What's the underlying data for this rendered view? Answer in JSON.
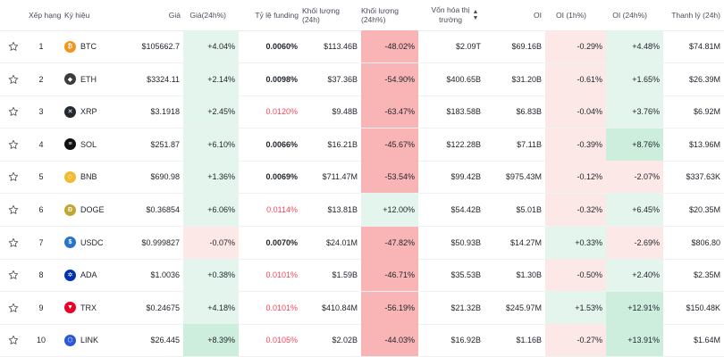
{
  "headers": {
    "rank": "Xếp hạng",
    "symbol": "Ký hiệu",
    "price": "Giá",
    "change24h": "Giá(24h%)",
    "funding": "Tỷ lệ funding",
    "volume": "Khối lượng (24h)",
    "volume_pct": "Khối lượng (24h%)",
    "mcap_line1": "Vốn hóa thị",
    "mcap_line2": "trường",
    "oi": "OI",
    "oi1h": "OI (1h%)",
    "oi24h": "OI (24h%)",
    "liq": "Thanh lý (24h)"
  },
  "colors": {
    "btc": "#f7931a",
    "eth": "#3c3c3d",
    "xrp": "#23292f",
    "sol": "#111111",
    "bnb": "#f3ba2f",
    "doge": "#c2a633",
    "usdc": "#2775ca",
    "ada": "#0033ad",
    "trx": "#eb0029",
    "link": "#2a5ada"
  },
  "rows": [
    {
      "rank": "1",
      "symbol": "BTC",
      "icon": "btc",
      "price": "$105662.7",
      "change": "+4.04%",
      "change_cls": "pos",
      "funding": "0.0060%",
      "funding_red": false,
      "volume": "$113.46B",
      "vol_pct": "-48.02%",
      "vol_cls": "neg-strong",
      "mcap": "$2.09T",
      "oi": "$69.16B",
      "oi1h": "-0.29%",
      "oi1h_cls": "neg",
      "oi24h": "+4.48%",
      "oi24h_cls": "pos",
      "liq": "$74.81M"
    },
    {
      "rank": "2",
      "symbol": "ETH",
      "icon": "eth",
      "price": "$3324.11",
      "change": "+2.14%",
      "change_cls": "pos",
      "funding": "0.0098%",
      "funding_red": false,
      "volume": "$37.36B",
      "vol_pct": "-54.90%",
      "vol_cls": "neg-strong",
      "mcap": "$400.65B",
      "oi": "$31.20B",
      "oi1h": "-0.61%",
      "oi1h_cls": "neg",
      "oi24h": "+1.65%",
      "oi24h_cls": "pos",
      "liq": "$26.39M"
    },
    {
      "rank": "3",
      "symbol": "XRP",
      "icon": "xrp",
      "price": "$3.1918",
      "change": "+2.45%",
      "change_cls": "pos",
      "funding": "0.0120%",
      "funding_red": true,
      "volume": "$9.48B",
      "vol_pct": "-63.47%",
      "vol_cls": "neg-strong",
      "mcap": "$183.58B",
      "oi": "$6.83B",
      "oi1h": "-0.04%",
      "oi1h_cls": "neg",
      "oi24h": "+3.76%",
      "oi24h_cls": "pos",
      "liq": "$6.92M"
    },
    {
      "rank": "4",
      "symbol": "SOL",
      "icon": "sol",
      "price": "$251.87",
      "change": "+6.10%",
      "change_cls": "pos",
      "funding": "0.0066%",
      "funding_red": false,
      "volume": "$16.21B",
      "vol_pct": "-45.67%",
      "vol_cls": "neg-strong",
      "mcap": "$122.28B",
      "oi": "$7.11B",
      "oi1h": "-0.39%",
      "oi1h_cls": "neg",
      "oi24h": "+8.76%",
      "oi24h_cls": "pos-strong",
      "liq": "$13.96M"
    },
    {
      "rank": "5",
      "symbol": "BNB",
      "icon": "bnb",
      "price": "$690.98",
      "change": "+1.36%",
      "change_cls": "pos",
      "funding": "0.0069%",
      "funding_red": false,
      "volume": "$711.47M",
      "vol_pct": "-53.54%",
      "vol_cls": "neg-strong",
      "mcap": "$99.42B",
      "oi": "$975.43M",
      "oi1h": "-0.12%",
      "oi1h_cls": "neg",
      "oi24h": "-2.07%",
      "oi24h_cls": "neg",
      "liq": "$337.63K"
    },
    {
      "rank": "6",
      "symbol": "DOGE",
      "icon": "doge",
      "price": "$0.36854",
      "change": "+6.06%",
      "change_cls": "pos",
      "funding": "0.0114%",
      "funding_red": true,
      "volume": "$13.81B",
      "vol_pct": "+12.00%",
      "vol_cls": "pos",
      "mcap": "$54.42B",
      "oi": "$5.01B",
      "oi1h": "-0.32%",
      "oi1h_cls": "neg",
      "oi24h": "+6.45%",
      "oi24h_cls": "pos",
      "liq": "$20.35M"
    },
    {
      "rank": "7",
      "symbol": "USDC",
      "icon": "usdc",
      "price": "$0.999827",
      "change": "-0.07%",
      "change_cls": "neg",
      "funding": "0.0070%",
      "funding_red": false,
      "volume": "$24.01M",
      "vol_pct": "-47.82%",
      "vol_cls": "neg-strong",
      "mcap": "$50.93B",
      "oi": "$14.27M",
      "oi1h": "+0.33%",
      "oi1h_cls": "pos",
      "oi24h": "-2.69%",
      "oi24h_cls": "neg",
      "liq": "$806.80"
    },
    {
      "rank": "8",
      "symbol": "ADA",
      "icon": "ada",
      "price": "$1.0036",
      "change": "+0.38%",
      "change_cls": "pos",
      "funding": "0.0101%",
      "funding_red": true,
      "volume": "$1.59B",
      "vol_pct": "-46.71%",
      "vol_cls": "neg-strong",
      "mcap": "$35.53B",
      "oi": "$1.30B",
      "oi1h": "-0.50%",
      "oi1h_cls": "neg",
      "oi24h": "+2.40%",
      "oi24h_cls": "pos",
      "liq": "$2.35M"
    },
    {
      "rank": "9",
      "symbol": "TRX",
      "icon": "trx",
      "price": "$0.24675",
      "change": "+4.18%",
      "change_cls": "pos",
      "funding": "0.0101%",
      "funding_red": true,
      "volume": "$410.84M",
      "vol_pct": "-56.19%",
      "vol_cls": "neg-strong",
      "mcap": "$21.32B",
      "oi": "$245.97M",
      "oi1h": "+1.53%",
      "oi1h_cls": "pos",
      "oi24h": "+12.91%",
      "oi24h_cls": "pos-strong",
      "liq": "$150.48K"
    },
    {
      "rank": "10",
      "symbol": "LINK",
      "icon": "link",
      "price": "$26.445",
      "change": "+8.39%",
      "change_cls": "pos-strong",
      "funding": "0.0105%",
      "funding_red": true,
      "volume": "$2.02B",
      "vol_pct": "-44.03%",
      "vol_cls": "neg-strong",
      "mcap": "$16.92B",
      "oi": "$1.16B",
      "oi1h": "-0.27%",
      "oi1h_cls": "neg",
      "oi24h": "+13.91%",
      "oi24h_cls": "pos-strong",
      "liq": "$1.64M"
    }
  ]
}
